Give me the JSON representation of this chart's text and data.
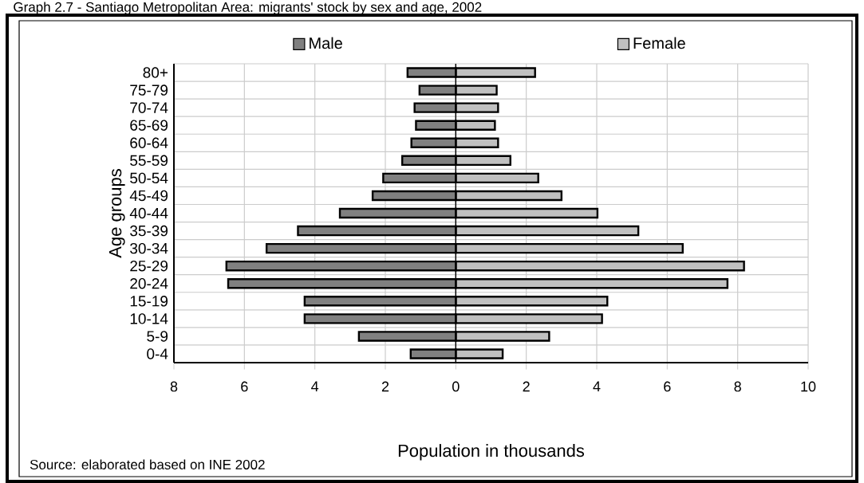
{
  "chart_data": {
    "type": "bar",
    "orientation": "horizontal",
    "title": "Graph 2.7 - Santiago Metropolitan Area: migrants' stock by sex and age, 2002",
    "xlabel": "Population in thousands",
    "ylabel": "Age groups",
    "annotations": [
      "Source: elaborated based on INE 2002"
    ],
    "categories": [
      "80+",
      "75-79",
      "70-74",
      "65-69",
      "60-64",
      "55-59",
      "50-54",
      "45-49",
      "40-44",
      "35-39",
      "30-34",
      "25-29",
      "20-24",
      "15-19",
      "10-14",
      "5-9",
      "0-4"
    ],
    "series": [
      {
        "name": "Male",
        "color": "#808080",
        "values": [
          -1.37,
          -1.03,
          -1.17,
          -1.13,
          -1.26,
          -1.52,
          -2.06,
          -2.36,
          -3.29,
          -4.48,
          -5.37,
          -6.51,
          -6.46,
          -4.29,
          -4.29,
          -2.75,
          -1.28
        ]
      },
      {
        "name": "Female",
        "color": "#c0c0c0",
        "values": [
          2.25,
          1.16,
          1.2,
          1.11,
          1.2,
          1.55,
          2.34,
          3.0,
          4.02,
          5.18,
          6.44,
          8.18,
          7.71,
          4.3,
          4.15,
          2.65,
          1.33
        ]
      }
    ],
    "xlim": [
      -8,
      10
    ],
    "xticks": [
      {
        "value": -8,
        "label": "8"
      },
      {
        "value": -6,
        "label": "6"
      },
      {
        "value": -4,
        "label": "4"
      },
      {
        "value": -2,
        "label": "2"
      },
      0,
      2,
      4,
      6,
      8,
      10
    ],
    "stacked": true,
    "grid": true,
    "legend": "top"
  }
}
